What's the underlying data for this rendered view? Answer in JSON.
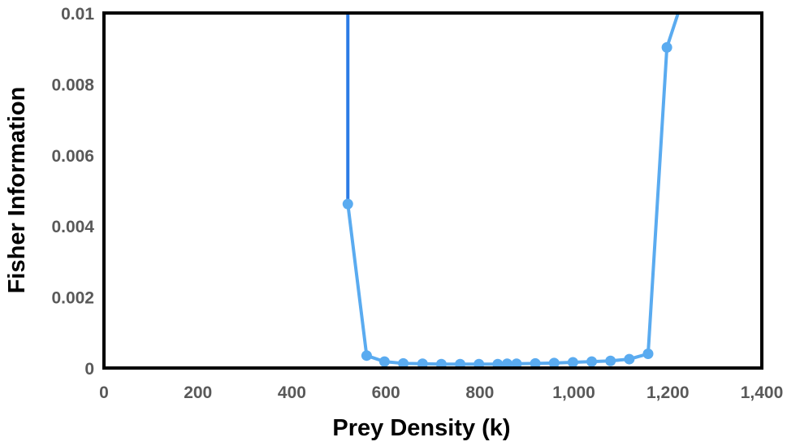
{
  "chart_data": {
    "type": "line",
    "title": "",
    "xlabel": "Prey Density (k)",
    "ylabel": "Fisher Information",
    "xlim": [
      0,
      1400
    ],
    "ylim": [
      0,
      0.01
    ],
    "grid": false,
    "legend": "none",
    "x_ticks": [
      "0",
      "200",
      "400",
      "600",
      "800",
      "1,000",
      "1,200",
      "1,400"
    ],
    "y_ticks": [
      "0",
      "0.002",
      "0.004",
      "0.006",
      "0.008",
      "0.01"
    ],
    "series": [
      {
        "color": "#5aabf0",
        "marker": "circle",
        "points": [
          [
            519,
            0.00462
          ],
          [
            559,
            0.00035
          ],
          [
            597,
            0.00018
          ],
          [
            637,
            0.00013
          ],
          [
            678,
            0.00012
          ],
          [
            718,
            0.00011
          ],
          [
            758,
            0.00011
          ],
          [
            798,
            0.00011
          ],
          [
            838,
            0.00011
          ],
          [
            858,
            0.00012
          ],
          [
            878,
            0.00012
          ],
          [
            918,
            0.00013
          ],
          [
            958,
            0.00014
          ],
          [
            998,
            0.00016
          ],
          [
            1038,
            0.00018
          ],
          [
            1078,
            0.0002
          ],
          [
            1118,
            0.00025
          ],
          [
            1158,
            0.0004
          ],
          [
            1198,
            0.00903
          ]
        ],
        "extends_above_top_start": [
          519,
          0.01
        ],
        "extends_above_top_end": [
          1222,
          0.01
        ]
      }
    ],
    "spike_segment": {
      "color": "#2c7be5",
      "points": [
        [
          519,
          0.01
        ],
        [
          519,
          0.00462
        ]
      ]
    }
  }
}
